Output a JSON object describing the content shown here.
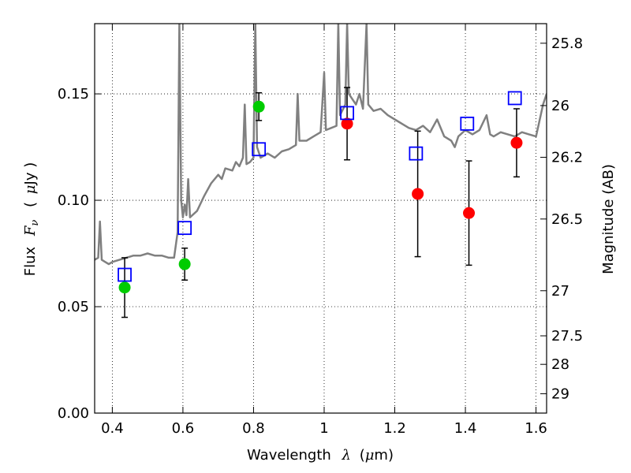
{
  "chart_data": {
    "type": "scatter",
    "title": "",
    "grid": true,
    "xlabel": {
      "text": "Wavelength",
      "symbol": "λ",
      "unit_open": "(",
      "unit_mu": "μ",
      "unit_rest": "m)"
    },
    "ylabel": {
      "text": "Flux",
      "symbol": "F",
      "symbol_sub": "ν",
      "unit_open": "(",
      "unit_mu": "μ",
      "unit_rest": "Jy )"
    },
    "ylabel_right": "Magnitude (AB)",
    "xlim": [
      0.35,
      1.63
    ],
    "ylim": [
      0.0,
      0.183
    ],
    "x_ticks": [
      0.4,
      0.6,
      0.8,
      1.0,
      1.2,
      1.4,
      1.6
    ],
    "x_tick_labels": [
      "0.4",
      "0.6",
      "0.8",
      "1",
      "1.2",
      "1.4",
      "1.6"
    ],
    "y_ticks": [
      0.0,
      0.05,
      0.1,
      0.15
    ],
    "y_tick_labels": [
      "0.00",
      "0.05",
      "0.10",
      "0.15"
    ],
    "right_ticks": [
      {
        "label": "25.8",
        "flux": 0.1738
      },
      {
        "label": "26",
        "flux": 0.1445
      },
      {
        "label": "26.2",
        "flux": 0.1202
      },
      {
        "label": "26.5",
        "flux": 0.0912
      },
      {
        "label": "27",
        "flux": 0.0575
      },
      {
        "label": "27.5",
        "flux": 0.0363
      },
      {
        "label": "28",
        "flux": 0.0229
      },
      {
        "label": "29",
        "flux": 0.0091
      }
    ],
    "spectrum": {
      "color": "#808080",
      "points": [
        [
          0.35,
          0.072
        ],
        [
          0.36,
          0.073
        ],
        [
          0.365,
          0.09
        ],
        [
          0.37,
          0.072
        ],
        [
          0.38,
          0.071
        ],
        [
          0.39,
          0.07
        ],
        [
          0.4,
          0.071
        ],
        [
          0.42,
          0.072
        ],
        [
          0.44,
          0.073
        ],
        [
          0.46,
          0.074
        ],
        [
          0.48,
          0.074
        ],
        [
          0.5,
          0.075
        ],
        [
          0.52,
          0.074
        ],
        [
          0.54,
          0.074
        ],
        [
          0.56,
          0.073
        ],
        [
          0.575,
          0.073
        ],
        [
          0.585,
          0.085
        ],
        [
          0.59,
          0.183
        ],
        [
          0.595,
          0.1
        ],
        [
          0.6,
          0.092
        ],
        [
          0.605,
          0.098
        ],
        [
          0.61,
          0.093
        ],
        [
          0.615,
          0.11
        ],
        [
          0.62,
          0.092
        ],
        [
          0.64,
          0.095
        ],
        [
          0.66,
          0.102
        ],
        [
          0.68,
          0.108
        ],
        [
          0.7,
          0.112
        ],
        [
          0.71,
          0.11
        ],
        [
          0.72,
          0.115
        ],
        [
          0.74,
          0.114
        ],
        [
          0.75,
          0.118
        ],
        [
          0.76,
          0.116
        ],
        [
          0.77,
          0.12
        ],
        [
          0.775,
          0.145
        ],
        [
          0.78,
          0.117
        ],
        [
          0.79,
          0.118
        ],
        [
          0.8,
          0.12
        ],
        [
          0.805,
          0.183
        ],
        [
          0.81,
          0.125
        ],
        [
          0.82,
          0.12
        ],
        [
          0.84,
          0.122
        ],
        [
          0.86,
          0.12
        ],
        [
          0.88,
          0.123
        ],
        [
          0.9,
          0.124
        ],
        [
          0.92,
          0.126
        ],
        [
          0.925,
          0.15
        ],
        [
          0.93,
          0.128
        ],
        [
          0.95,
          0.128
        ],
        [
          0.97,
          0.13
        ],
        [
          0.99,
          0.132
        ],
        [
          1.0,
          0.16
        ],
        [
          1.005,
          0.133
        ],
        [
          1.02,
          0.134
        ],
        [
          1.035,
          0.135
        ],
        [
          1.04,
          0.183
        ],
        [
          1.045,
          0.14
        ],
        [
          1.06,
          0.145
        ],
        [
          1.065,
          0.183
        ],
        [
          1.07,
          0.15
        ],
        [
          1.09,
          0.145
        ],
        [
          1.1,
          0.15
        ],
        [
          1.11,
          0.143
        ],
        [
          1.12,
          0.183
        ],
        [
          1.125,
          0.145
        ],
        [
          1.14,
          0.142
        ],
        [
          1.16,
          0.143
        ],
        [
          1.18,
          0.14
        ],
        [
          1.2,
          0.138
        ],
        [
          1.22,
          0.136
        ],
        [
          1.24,
          0.134
        ],
        [
          1.26,
          0.133
        ],
        [
          1.28,
          0.135
        ],
        [
          1.3,
          0.132
        ],
        [
          1.32,
          0.138
        ],
        [
          1.34,
          0.13
        ],
        [
          1.36,
          0.128
        ],
        [
          1.37,
          0.125
        ],
        [
          1.38,
          0.13
        ],
        [
          1.4,
          0.133
        ],
        [
          1.42,
          0.131
        ],
        [
          1.44,
          0.133
        ],
        [
          1.46,
          0.14
        ],
        [
          1.47,
          0.131
        ],
        [
          1.48,
          0.13
        ],
        [
          1.5,
          0.132
        ],
        [
          1.52,
          0.131
        ],
        [
          1.54,
          0.13
        ],
        [
          1.56,
          0.132
        ],
        [
          1.58,
          0.131
        ],
        [
          1.6,
          0.13
        ],
        [
          1.62,
          0.145
        ],
        [
          1.63,
          0.15
        ]
      ]
    },
    "points_green": {
      "color": "#00cc00",
      "points": [
        {
          "x": 0.435,
          "y": 0.059,
          "err": 0.014
        },
        {
          "x": 0.605,
          "y": 0.07,
          "err": 0.0075
        },
        {
          "x": 0.815,
          "y": 0.144,
          "err": 0.0065
        }
      ]
    },
    "points_red": {
      "color": "#ff0000",
      "points": [
        {
          "x": 1.065,
          "y": 0.136,
          "err": 0.017
        },
        {
          "x": 1.265,
          "y": 0.103,
          "err": 0.0295
        },
        {
          "x": 1.41,
          "y": 0.094,
          "err": 0.0245
        },
        {
          "x": 1.545,
          "y": 0.127,
          "err": 0.016
        }
      ]
    },
    "model_squares": {
      "color": "#0000ff",
      "points": [
        {
          "x": 0.435,
          "y": 0.065
        },
        {
          "x": 0.605,
          "y": 0.087
        },
        {
          "x": 0.815,
          "y": 0.124
        },
        {
          "x": 1.065,
          "y": 0.141
        },
        {
          "x": 1.26,
          "y": 0.122
        },
        {
          "x": 1.405,
          "y": 0.136
        },
        {
          "x": 1.54,
          "y": 0.148
        }
      ]
    }
  }
}
